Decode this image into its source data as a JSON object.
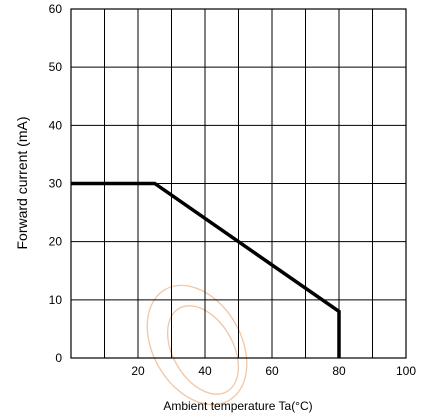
{
  "chart_data": {
    "type": "line",
    "xlabel": "Ambient temperature Ta(°C)",
    "ylabel": "Forward current (mA)",
    "xlim": [
      0,
      100
    ],
    "ylim": [
      0,
      60
    ],
    "x_ticks": [
      20,
      40,
      60,
      80,
      100
    ],
    "y_ticks": [
      0,
      10,
      20,
      30,
      40,
      50,
      60
    ],
    "x_grid_step": 10,
    "grid": true,
    "series": [
      {
        "x": [
          0,
          25,
          80,
          80
        ],
        "y": [
          30,
          30,
          8,
          0
        ]
      }
    ]
  }
}
